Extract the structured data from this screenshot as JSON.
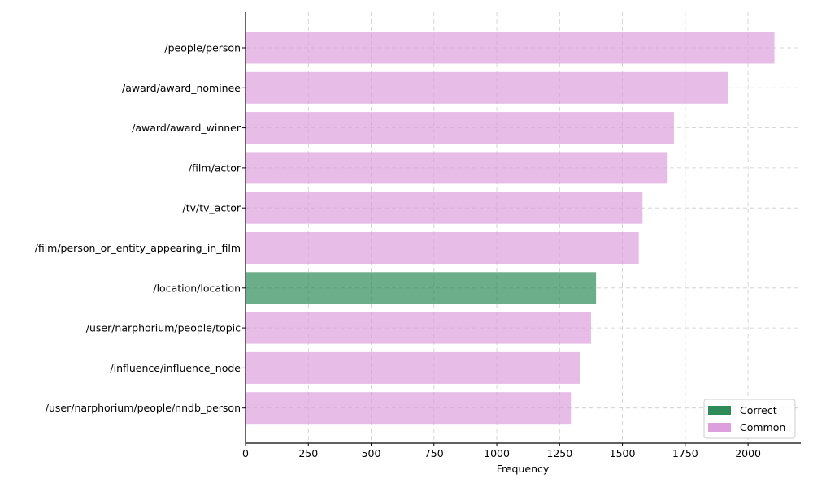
{
  "chart_data": {
    "type": "bar",
    "orientation": "horizontal",
    "title": "",
    "xlabel": "Frequency",
    "ylabel": "",
    "xlim": [
      0,
      2210
    ],
    "xticks": [
      0,
      250,
      500,
      750,
      1000,
      1250,
      1500,
      1750,
      2000
    ],
    "grid": true,
    "legend_position": "bottom-right",
    "categories": [
      "/people/person",
      "/award/award_nominee",
      "/award/award_winner",
      "/film/actor",
      "/tv/tv_actor",
      "/film/person_or_entity_appearing_in_film",
      "/location/location",
      "/user/narphorium/people/topic",
      "/influence/influence_node",
      "/user/narphorium/people/nndb_person"
    ],
    "values": [
      2105,
      1920,
      1705,
      1680,
      1580,
      1565,
      1395,
      1375,
      1330,
      1295
    ],
    "groups": [
      "Common",
      "Common",
      "Common",
      "Common",
      "Common",
      "Common",
      "Correct",
      "Common",
      "Common",
      "Common"
    ],
    "legend": [
      {
        "name": "Correct",
        "color": "#2e8b57"
      },
      {
        "name": "Common",
        "color": "#dda0dd"
      }
    ]
  }
}
